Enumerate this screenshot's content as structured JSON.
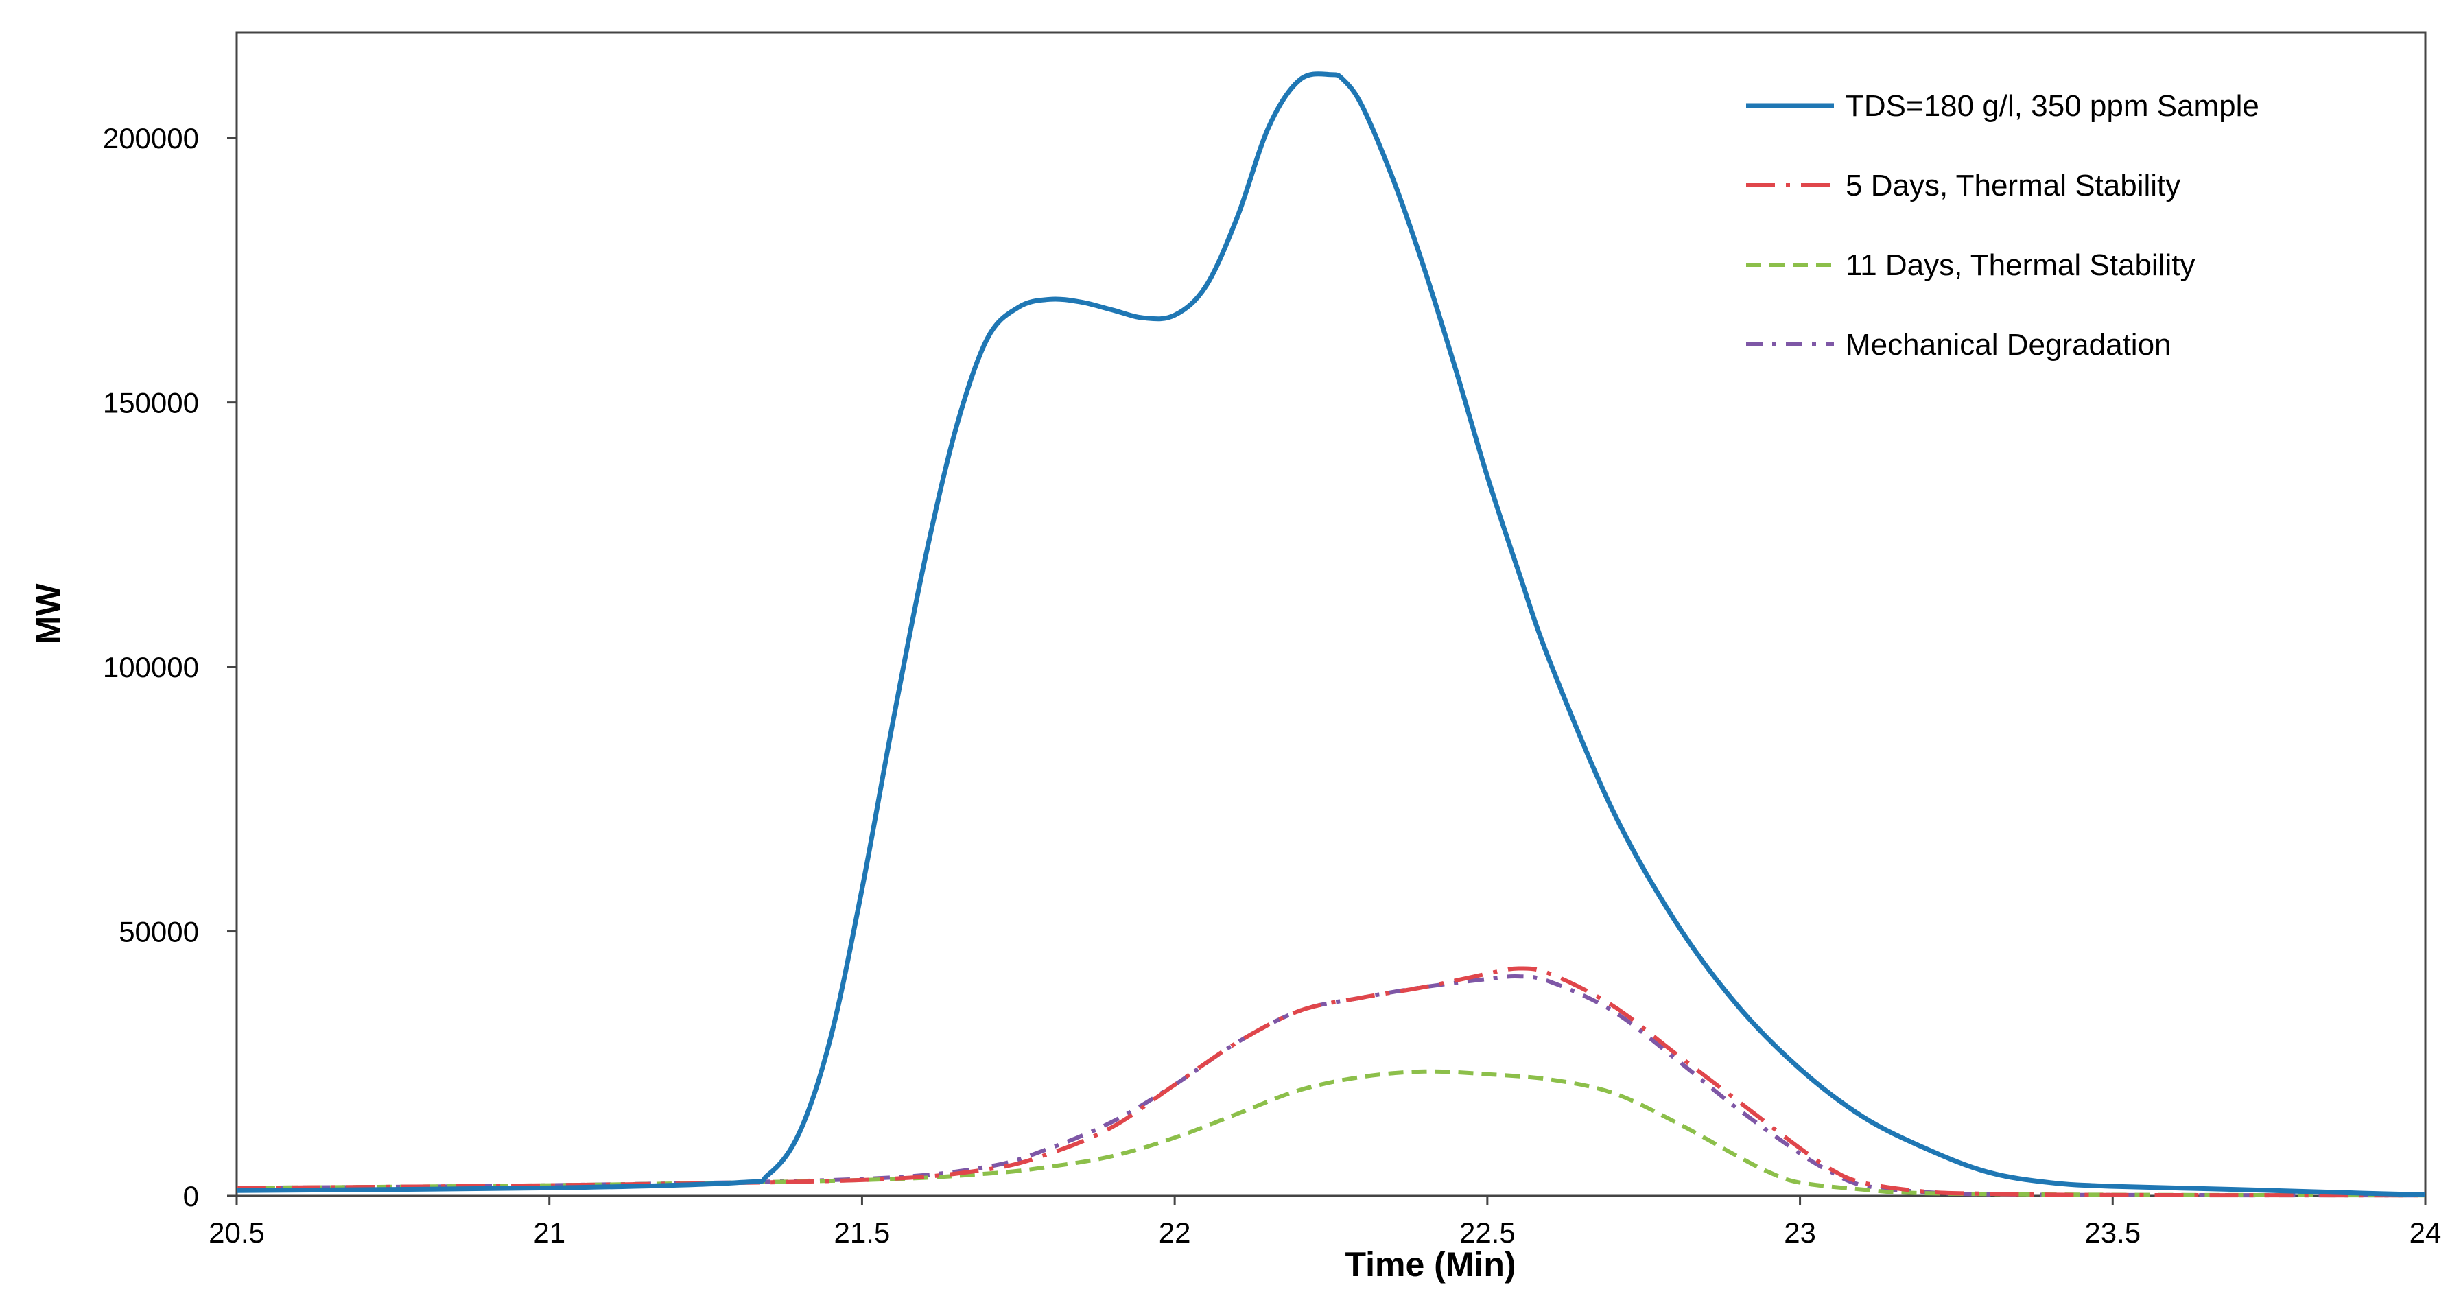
{
  "chart_data": {
    "type": "line",
    "title": "",
    "xlabel": "Time (Min)",
    "ylabel": "MW",
    "xlim": [
      20.5,
      24
    ],
    "ylim": [
      0,
      220000
    ],
    "xticks": [
      20.5,
      21,
      21.5,
      22,
      22.5,
      23,
      23.5,
      24
    ],
    "xtick_labels": [
      "20.5",
      "21",
      "21.5",
      "22",
      "22.5",
      "23",
      "23.5",
      "24"
    ],
    "yticks": [
      0,
      50000,
      100000,
      150000,
      200000
    ],
    "ytick_labels": [
      "0",
      "50000",
      "100000",
      "150000",
      "200000"
    ],
    "grid": false,
    "legend_position": "top-right",
    "series": [
      {
        "name": "TDS=180 g/l, 350 ppm Sample",
        "color": "#1f77b4",
        "dash": "solid",
        "x": [
          20.5,
          21.0,
          21.3,
          21.35,
          21.4,
          21.45,
          21.5,
          21.55,
          21.6,
          21.65,
          21.7,
          21.75,
          21.8,
          21.85,
          21.9,
          21.95,
          22.0,
          22.05,
          22.1,
          22.15,
          22.2,
          22.25,
          22.27,
          22.3,
          22.35,
          22.4,
          22.45,
          22.5,
          22.55,
          22.6,
          22.7,
          22.8,
          22.9,
          23.0,
          23.1,
          23.2,
          23.3,
          23.4,
          23.5,
          23.7,
          23.9,
          24.0
        ],
        "y": [
          1000,
          1500,
          2500,
          4000,
          12000,
          30000,
          58000,
          90000,
          120000,
          145000,
          162000,
          168000,
          169500,
          169000,
          167500,
          166000,
          166500,
          172000,
          185000,
          202000,
          211000,
          212000,
          211000,
          206000,
          192000,
          175000,
          156000,
          136000,
          118000,
          101000,
          73000,
          52000,
          36000,
          24000,
          15000,
          9000,
          4500,
          2500,
          1800,
          1200,
          500,
          200
        ]
      },
      {
        "name": "5 Days, Thermal Stability",
        "color": "#e0464b",
        "dash": "longdash-dot",
        "x": [
          20.5,
          21.0,
          21.5,
          21.7,
          21.8,
          21.9,
          22.0,
          22.1,
          22.2,
          22.3,
          22.4,
          22.5,
          22.55,
          22.6,
          22.7,
          22.8,
          22.9,
          23.0,
          23.05,
          23.1,
          23.2,
          23.3,
          23.5,
          24.0
        ],
        "y": [
          1500,
          2000,
          3000,
          5000,
          8000,
          13000,
          21000,
          29000,
          35000,
          37500,
          39500,
          42000,
          43000,
          42000,
          36000,
          27000,
          18000,
          9000,
          5000,
          2500,
          800,
          400,
          150,
          100
        ]
      },
      {
        "name": "11 Days, Thermal Stability",
        "color": "#8cbf4a",
        "dash": "dashed",
        "x": [
          20.5,
          21.0,
          21.5,
          21.7,
          21.8,
          21.9,
          22.0,
          22.1,
          22.2,
          22.3,
          22.4,
          22.5,
          22.6,
          22.7,
          22.8,
          22.9,
          22.95,
          23.0,
          23.1,
          23.2,
          23.5,
          24.0
        ],
        "y": [
          1500,
          2000,
          3000,
          4200,
          5500,
          7500,
          11000,
          15500,
          20000,
          22500,
          23500,
          23000,
          22000,
          19500,
          14000,
          7500,
          4500,
          2500,
          1200,
          500,
          200,
          100
        ]
      },
      {
        "name": "Mechanical Degradation",
        "color": "#7e57a6",
        "dash": "dash-dot",
        "x": [
          20.5,
          21.0,
          21.5,
          21.7,
          21.8,
          21.9,
          22.0,
          22.1,
          22.2,
          22.3,
          22.4,
          22.5,
          22.55,
          22.6,
          22.7,
          22.8,
          22.9,
          23.0,
          23.05,
          23.1,
          23.2,
          23.3,
          23.5,
          24.0
        ],
        "y": [
          1500,
          2000,
          3200,
          5500,
          9000,
          14000,
          21000,
          29000,
          35000,
          37500,
          39500,
          41000,
          41500,
          40500,
          35000,
          26000,
          16500,
          8000,
          4500,
          2000,
          700,
          300,
          150,
          100
        ]
      }
    ]
  }
}
